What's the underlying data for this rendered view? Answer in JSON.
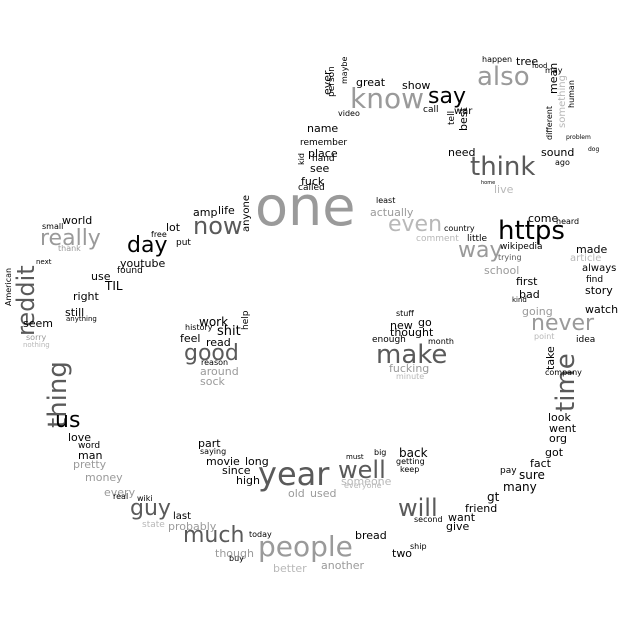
{
  "words": [
    "one",
    "year",
    "people",
    "https",
    "know",
    "also",
    "think",
    "make",
    "time",
    "thing",
    "reddit",
    "really",
    "now",
    "good",
    "never",
    "way",
    "well",
    "will",
    "much",
    "day",
    "guy",
    "us",
    "say",
    "even",
    "actually",
    "first",
    "school",
    "going",
    "bad",
    "take",
    "story",
    "watch",
    "always",
    "find",
    "made",
    "article",
    "come",
    "heard",
    "wikipedia",
    "trying",
    "little",
    "country",
    "comment",
    "least",
    "life",
    "amp",
    "anyone",
    "lot",
    "put",
    "free",
    "youtube",
    "TIL",
    "found",
    "use",
    "right",
    "still",
    "anything",
    "world",
    "small",
    "thank",
    "next",
    "seem",
    "sorry",
    "nothing",
    "American",
    "love",
    "word",
    "man",
    "pretty",
    "money",
    "every",
    "real",
    "wiki",
    "state",
    "probably",
    "last",
    "part",
    "saying",
    "movie",
    "since",
    "high",
    "long",
    "old",
    "used",
    "someone",
    "everyone",
    "must",
    "big",
    "back",
    "getting",
    "keep",
    "friend",
    "want",
    "give",
    "second",
    "ship",
    "two",
    "bread",
    "another",
    "better",
    "today",
    "though",
    "buy",
    "gt",
    "many",
    "sure",
    "pay",
    "fact",
    "went",
    "org",
    "got",
    "look",
    "company",
    "idea",
    "point",
    "kind",
    "work",
    "history",
    "feel",
    "shit",
    "read",
    "help",
    "reason",
    "around",
    "sock",
    "new",
    "go",
    "stuff",
    "thought",
    "enough",
    "month",
    "fucking",
    "minute",
    "name",
    "remember",
    "place",
    "hand",
    "see",
    "kid",
    "fuck",
    "called",
    "great",
    "show",
    "video",
    "maybe",
    "person",
    "ever",
    "need",
    "best",
    "tell",
    "war",
    "call",
    "mean",
    "something",
    "human",
    "different",
    "sound",
    "ago",
    "happen",
    "tree",
    "food",
    "may",
    "live",
    "home",
    "problem",
    "dog"
  ],
  "colors": {
    "black": "#000000",
    "gray": "#9a9a9a",
    "dark_gray": "#5a5a5a",
    "light_gray": "#b8b8b8",
    "background": "#ffffff"
  }
}
